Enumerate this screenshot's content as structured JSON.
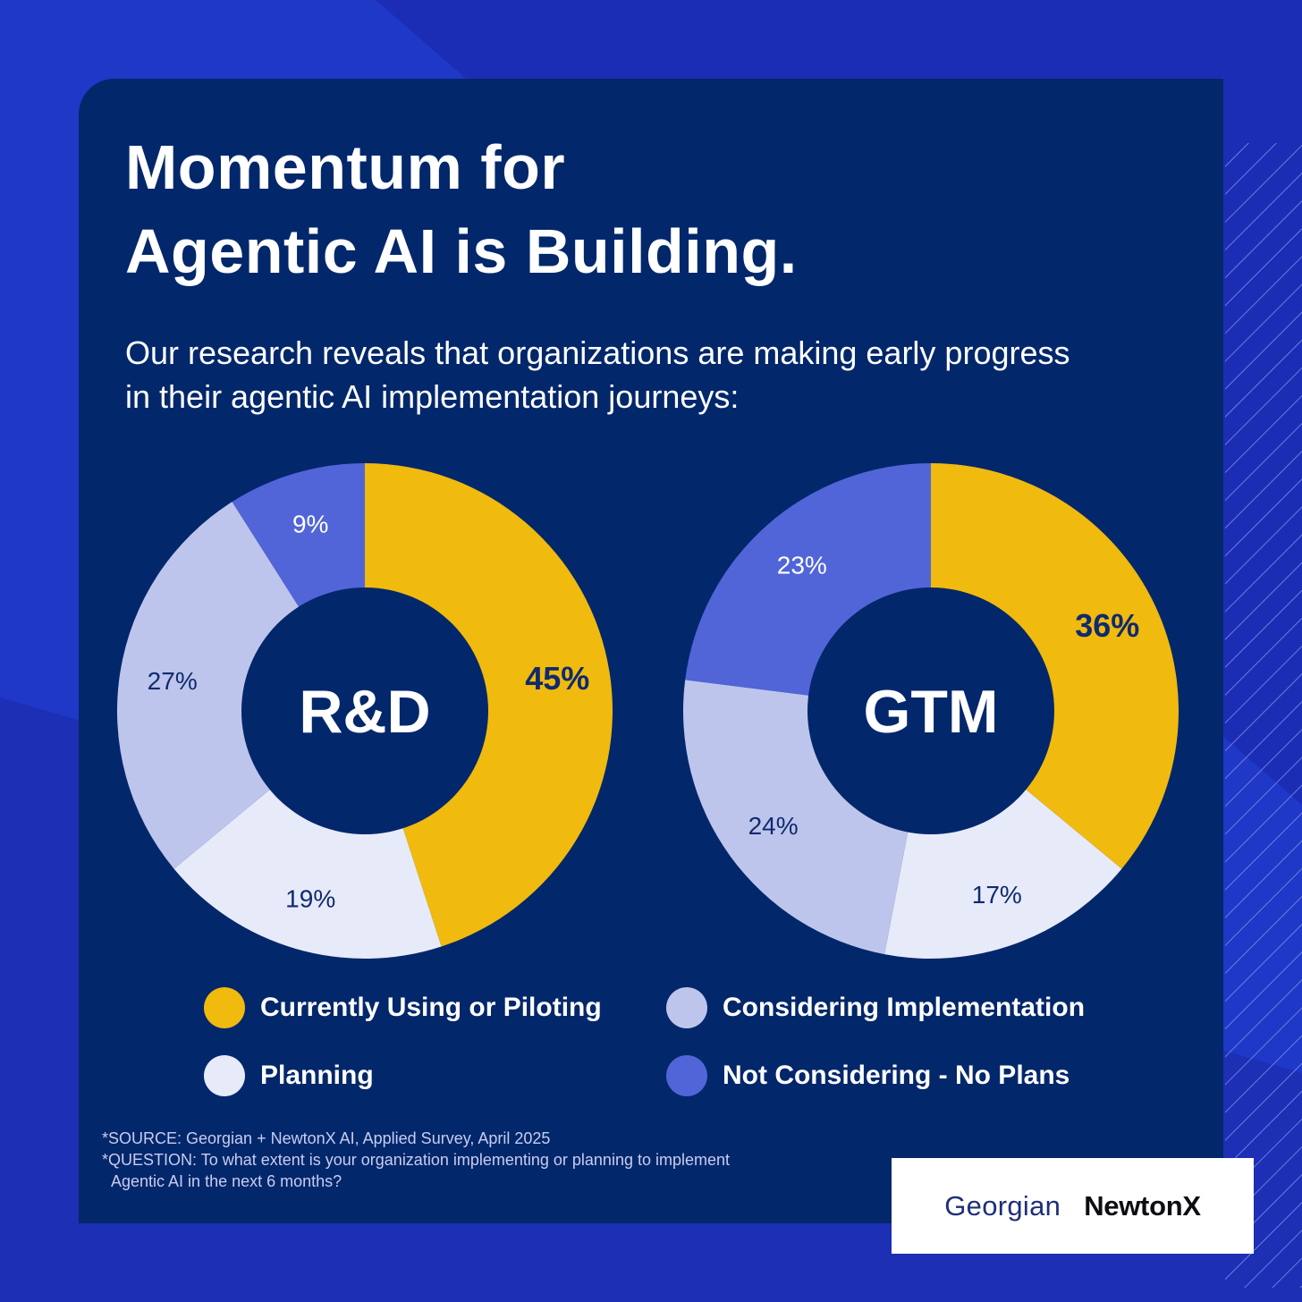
{
  "page": {
    "title_lines": [
      "Momentum for",
      "Agentic AI is Building."
    ],
    "subtitle": "Our research reveals that organizations are making early progress in their agentic AI implementation journeys:",
    "footnotes": {
      "source": "*SOURCE: Georgian + NewtonX AI, Applied Survey, April 2025",
      "question_line1": "*QUESTION: To what extent is your organization implementing or planning to implement",
      "question_line2": "Agentic AI in the next 6 months?"
    },
    "logos": {
      "georgian": "Georgian",
      "newtonx": "NewtonX"
    },
    "colors": {
      "background": "#2a44d8",
      "background_dark": "#1b2cb0",
      "panel": "#03276b",
      "hatch": "#7f8fe6"
    }
  },
  "chart_data": [
    {
      "type": "pie",
      "donut": true,
      "center_label": "R&D",
      "categories": [
        "Currently Using or Piloting",
        "Planning",
        "Considering Implementation",
        "Not Considering - No Plans"
      ],
      "values": [
        45,
        19,
        27,
        9
      ],
      "value_labels": [
        "45%",
        "19%",
        "27%",
        "9%"
      ],
      "colors": [
        "#f0ba0e",
        "#e7eaf9",
        "#bec5ec",
        "#5165d8"
      ]
    },
    {
      "type": "pie",
      "donut": true,
      "center_label": "GTM",
      "categories": [
        "Currently Using or Piloting",
        "Planning",
        "Considering Implementation",
        "Not Considering - No Plans"
      ],
      "values": [
        36,
        17,
        24,
        23
      ],
      "value_labels": [
        "36%",
        "17%",
        "24%",
        "23%"
      ],
      "colors": [
        "#f0ba0e",
        "#e7eaf9",
        "#bec5ec",
        "#5165d8"
      ]
    }
  ],
  "legend": [
    {
      "label": "Currently Using or Piloting",
      "color": "#f0ba0e"
    },
    {
      "label": "Considering Implementation",
      "color": "#bec5ec"
    },
    {
      "label": "Planning",
      "color": "#e7eaf9"
    },
    {
      "label": "Not Considering - No Plans",
      "color": "#5165d8"
    }
  ]
}
